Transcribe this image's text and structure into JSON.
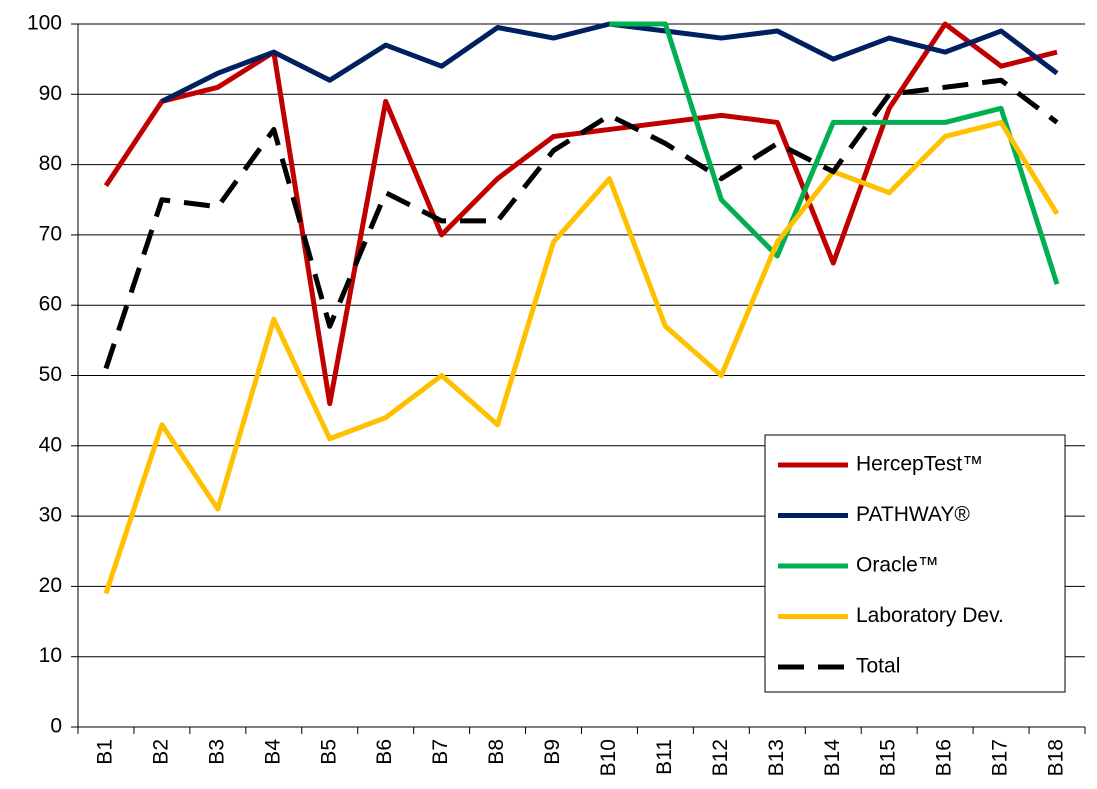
{
  "chart_data": {
    "type": "line",
    "categories": [
      "B1",
      "B2",
      "B3",
      "B4",
      "B5",
      "B6",
      "B7",
      "B8",
      "B9",
      "B10",
      "B11",
      "B12",
      "B13",
      "B14",
      "B15",
      "B16",
      "B17",
      "B18"
    ],
    "series": [
      {
        "name": "HercepTest™",
        "color": "#c00000",
        "style": "solid",
        "values": [
          77,
          89,
          91,
          96,
          46,
          89,
          70,
          78,
          84,
          85,
          86,
          87,
          86,
          66,
          88,
          100,
          94,
          96
        ]
      },
      {
        "name": "PATHWAY®",
        "color": "#002060",
        "style": "solid",
        "values": [
          null,
          89,
          93,
          96,
          92,
          97,
          94,
          99.5,
          98,
          100,
          99,
          98,
          99,
          95,
          98,
          96,
          99,
          93
        ]
      },
      {
        "name": "Oracle™",
        "color": "#00b050",
        "style": "solid",
        "values": [
          null,
          null,
          null,
          null,
          null,
          null,
          null,
          null,
          null,
          100,
          100,
          75,
          67,
          86,
          86,
          86,
          88,
          63
        ]
      },
      {
        "name": "Laboratory Dev.",
        "color": "#ffc000",
        "style": "solid",
        "values": [
          19,
          43,
          31,
          58,
          41,
          44,
          50,
          43,
          69,
          78,
          57,
          50,
          69,
          79,
          76,
          84,
          86,
          73
        ]
      },
      {
        "name": "Total",
        "color": "#000000",
        "style": "dashed",
        "values": [
          51,
          75,
          74,
          85,
          57,
          76,
          72,
          72,
          82,
          87,
          83,
          78,
          83,
          79,
          90,
          91,
          92,
          86
        ]
      }
    ],
    "ylim": [
      0,
      100
    ],
    "yticks": [
      0,
      10,
      20,
      30,
      40,
      50,
      60,
      70,
      80,
      90,
      100
    ],
    "grid": true,
    "legend": "lower right"
  }
}
